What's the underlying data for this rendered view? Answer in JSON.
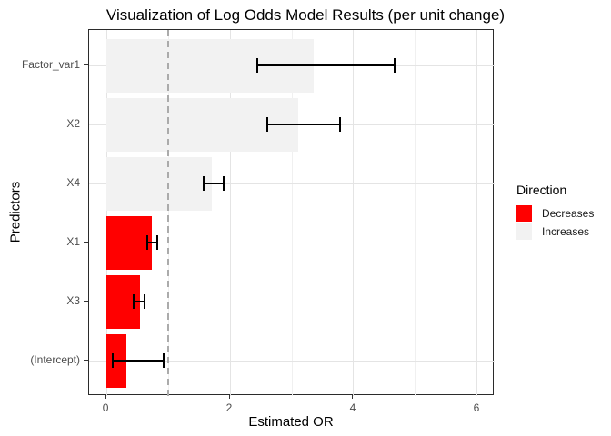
{
  "chart_data": {
    "type": "bar",
    "orientation": "horizontal",
    "title": "Visualization of Log Odds Model Results (per unit change)",
    "xlabel": "Estimated OR",
    "ylabel": "Predictors",
    "categories": [
      "Factor_var1",
      "X2",
      "X4",
      "X1",
      "X3",
      "(Intercept)"
    ],
    "series": [
      {
        "name": "Estimated OR",
        "values": [
          3.35,
          3.1,
          1.7,
          0.73,
          0.54,
          0.33
        ]
      }
    ],
    "error_bars": {
      "low": [
        2.44,
        2.6,
        1.57,
        0.66,
        0.44,
        0.1
      ],
      "high": [
        4.66,
        3.78,
        1.9,
        0.82,
        0.62,
        0.93
      ]
    },
    "direction": [
      "Increases",
      "Increases",
      "Increases",
      "Decreases",
      "Decreases",
      "Decreases"
    ],
    "reference_line_x": 1,
    "x_ticks": [
      0,
      2,
      4,
      6
    ],
    "x_minor_ticks": [
      1,
      3,
      5
    ],
    "xlim": [
      -0.28,
      6.28
    ],
    "grid": true,
    "legend": {
      "title": "Direction",
      "position": "right",
      "entries": [
        {
          "label": "Decreases",
          "color": "#ff0000"
        },
        {
          "label": "Increases",
          "color": "#f2f2f2"
        }
      ]
    },
    "colors": {
      "Decreases": "#ff0000",
      "Increases": "#f2f2f2",
      "grid_major": "#e4e4e4",
      "grid_minor": "#f0f0f0",
      "reference_line": "#ababab",
      "error_bar": "#000000",
      "axis_text": "#4d4d4d",
      "panel_border": "#2b2b2b",
      "tick_mark": "#333333"
    }
  }
}
